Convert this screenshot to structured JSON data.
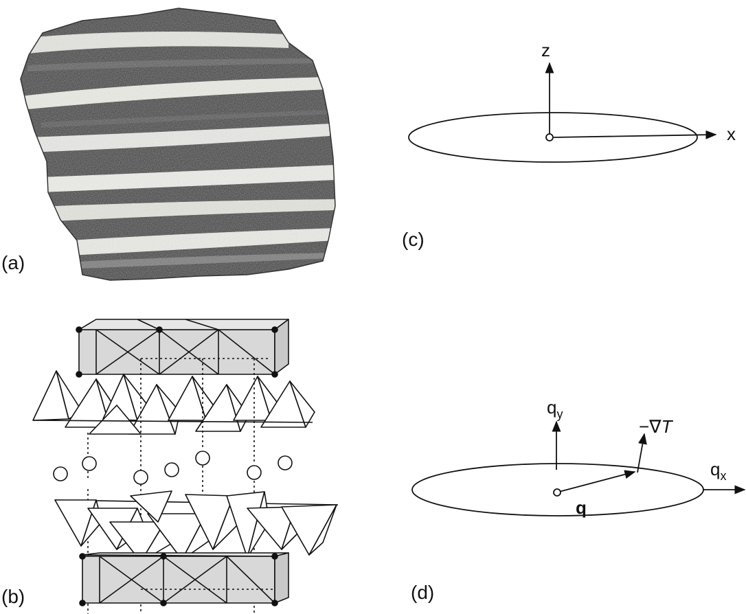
{
  "panels": {
    "a": {
      "label": "(a)"
    },
    "b": {
      "label": "(b)"
    },
    "c": {
      "label": "(c)",
      "axis_z": "z",
      "axis_x": "x"
    },
    "d": {
      "label": "(d)",
      "axis_qy_base": "q",
      "axis_qy_sub": "y",
      "axis_qx_base": "q",
      "axis_qx_sub": "x",
      "vector_q": "q",
      "gradient_prefix": "−∇",
      "gradient_var": "T"
    }
  },
  "colors": {
    "ink": "#111111",
    "rock_dark": "#2a2a2a",
    "band_light": "#efefea",
    "slab_fill": "#d9d9d9"
  }
}
